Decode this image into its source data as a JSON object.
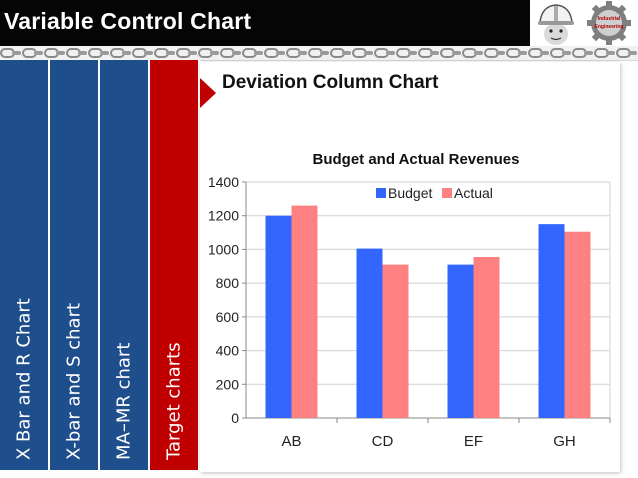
{
  "header": {
    "title": "Variable Control Chart"
  },
  "logos": [
    {
      "name": "worker-helmet-logo",
      "icon": "helmet-icon"
    },
    {
      "name": "industrial-engineering-logo",
      "icon": "gear-icon",
      "text_line1": "Industrial",
      "text_line2": "Engineering"
    }
  ],
  "tabs": [
    {
      "label": "X Bar and R Chart",
      "color": "#1f4e8c",
      "active": false
    },
    {
      "label": "X-bar  and S chart",
      "color": "#1f4e8c",
      "active": false
    },
    {
      "label": "MA–MR chart",
      "color": "#1f4e8c",
      "active": false
    },
    {
      "label": "Target charts",
      "color": "#c00000",
      "active": true
    }
  ],
  "panel": {
    "title": "Deviation Column Chart"
  },
  "chart_data": {
    "type": "bar",
    "title": "Budget and Actual Revenues",
    "xlabel": "",
    "ylabel": "",
    "categories": [
      "AB",
      "CD",
      "EF",
      "GH"
    ],
    "series": [
      {
        "name": "Budget",
        "color": "#3366ff",
        "values": [
          1200,
          1005,
          910,
          1150
        ]
      },
      {
        "name": "Actual",
        "color": "#ff8080",
        "values": [
          1260,
          910,
          955,
          1105
        ]
      }
    ],
    "ylim": [
      0,
      1400
    ],
    "yticks": [
      0,
      200,
      400,
      600,
      800,
      1000,
      1200,
      1400
    ],
    "grid": true,
    "legend": "top-right"
  }
}
